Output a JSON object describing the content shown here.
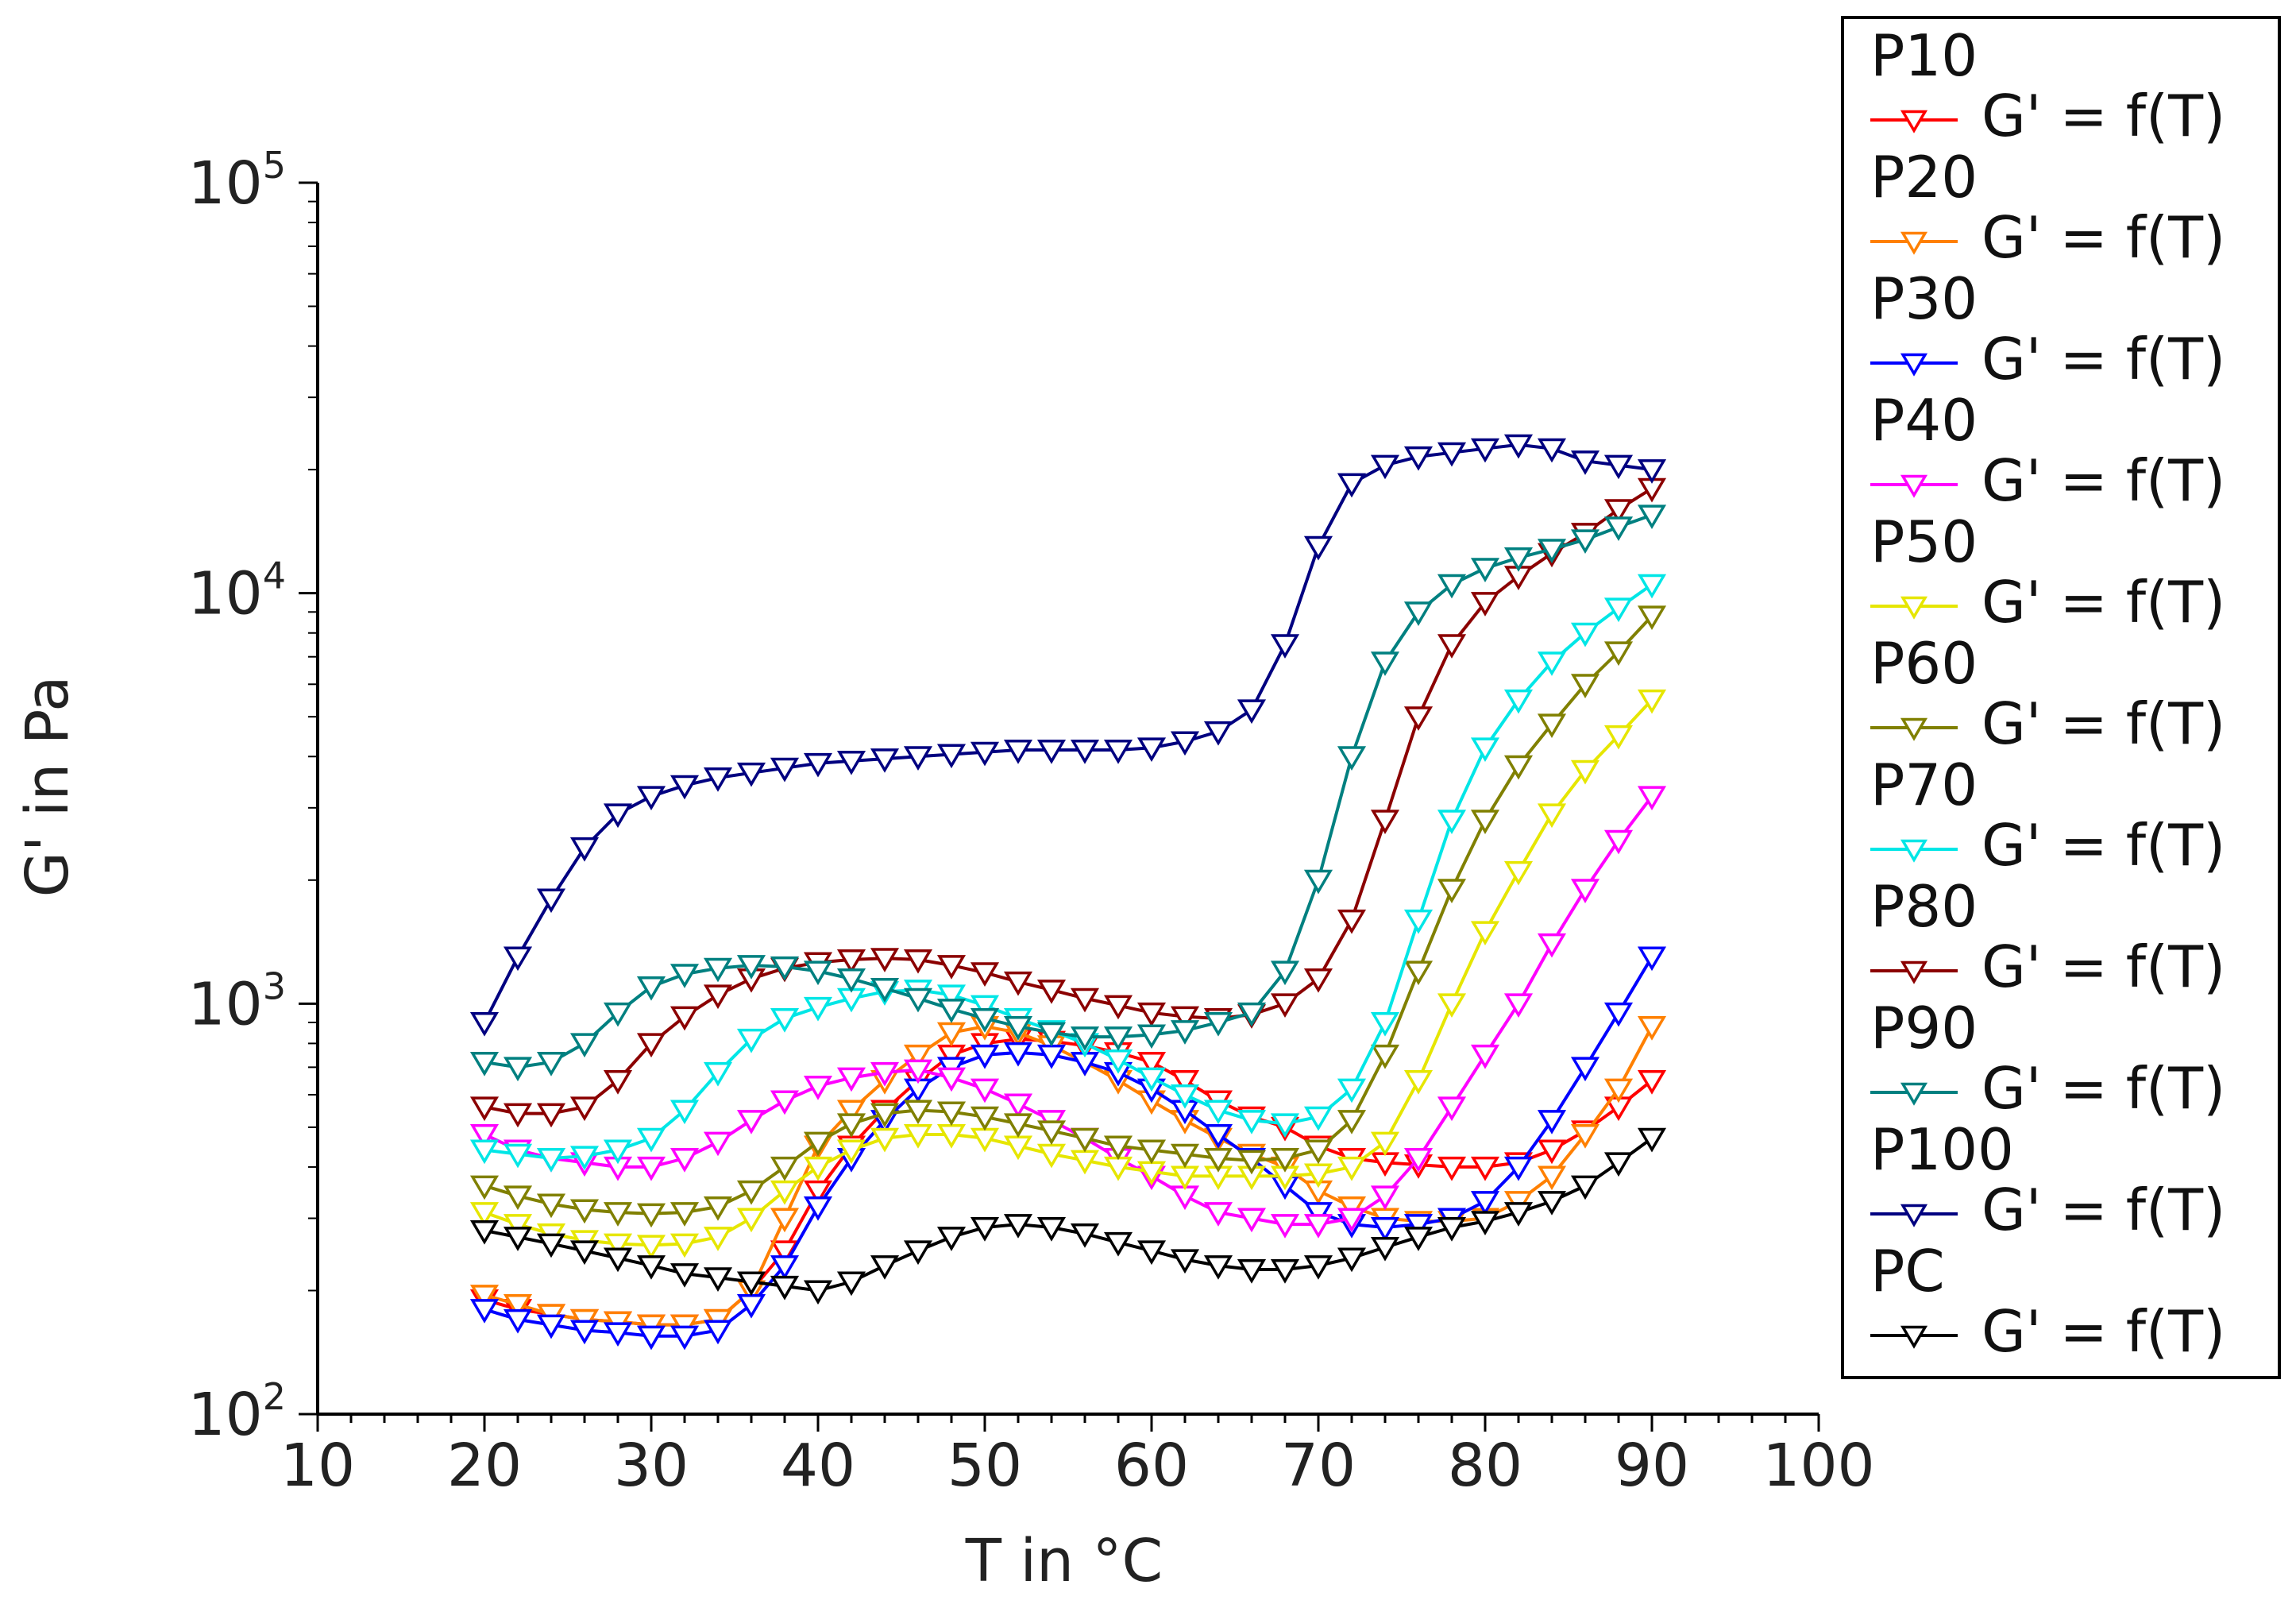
{
  "chart_data": {
    "type": "line",
    "title": "",
    "xlabel": "T in °C",
    "ylabel": "G' in Pa",
    "xlim": [
      10,
      100
    ],
    "ylim": [
      100,
      100000
    ],
    "yscale": "log",
    "x_ticks": [
      "10",
      "20",
      "30",
      "40",
      "50",
      "60",
      "70",
      "80",
      "90",
      "100"
    ],
    "y_ticks": [
      {
        "base": "10",
        "exp": "2"
      },
      {
        "base": "10",
        "exp": "3"
      },
      {
        "base": "10",
        "exp": "4"
      },
      {
        "base": "10",
        "exp": "5"
      }
    ],
    "marker": "down-triangle",
    "legend_position": "right",
    "x": [
      20,
      22,
      24,
      26,
      28,
      30,
      32,
      34,
      36,
      38,
      40,
      42,
      44,
      46,
      48,
      50,
      52,
      54,
      56,
      58,
      60,
      62,
      64,
      66,
      68,
      70,
      72,
      74,
      76,
      78,
      80,
      82,
      84,
      86,
      88,
      90
    ],
    "series": [
      {
        "name": "P10",
        "entry": "G' = f(T)",
        "color": "#ff0000",
        "values": [
          190,
          180,
          175,
          170,
          168,
          165,
          165,
          170,
          200,
          250,
          350,
          450,
          550,
          650,
          750,
          800,
          820,
          810,
          790,
          760,
          720,
          650,
          580,
          530,
          500,
          450,
          420,
          410,
          405,
          400,
          400,
          410,
          440,
          490,
          560,
          650
        ]
      },
      {
        "name": "P20",
        "entry": "G' = f(T)",
        "color": "#ff8000",
        "values": [
          195,
          185,
          175,
          170,
          168,
          165,
          165,
          170,
          200,
          300,
          450,
          550,
          650,
          750,
          850,
          880,
          850,
          790,
          720,
          650,
          580,
          520,
          470,
          430,
          400,
          350,
          320,
          300,
          295,
          295,
          300,
          330,
          380,
          480,
          620,
          880
        ]
      },
      {
        "name": "P30",
        "entry": "G' = f(T)",
        "color": "#0000ff",
        "values": [
          180,
          170,
          165,
          160,
          158,
          155,
          155,
          160,
          185,
          230,
          320,
          420,
          520,
          620,
          700,
          750,
          760,
          750,
          720,
          680,
          620,
          550,
          480,
          420,
          360,
          310,
          290,
          285,
          290,
          300,
          330,
          400,
          520,
          700,
          950,
          1300
        ]
      },
      {
        "name": "P40",
        "entry": "G' = f(T)",
        "color": "#ff00ff",
        "values": [
          480,
          440,
          420,
          410,
          400,
          400,
          420,
          460,
          520,
          580,
          630,
          660,
          680,
          690,
          660,
          620,
          570,
          520,
          470,
          420,
          380,
          340,
          310,
          300,
          290,
          290,
          300,
          340,
          420,
          560,
          750,
          1000,
          1400,
          1900,
          2500,
          3200
        ]
      },
      {
        "name": "P50",
        "entry": "G' = f(T)",
        "color": "#e6e600",
        "values": [
          310,
          290,
          275,
          265,
          260,
          258,
          260,
          270,
          300,
          350,
          400,
          440,
          470,
          480,
          480,
          470,
          450,
          430,
          415,
          400,
          390,
          380,
          380,
          380,
          380,
          385,
          400,
          460,
          650,
          1000,
          1500,
          2100,
          2900,
          3700,
          4500,
          5500
        ]
      },
      {
        "name": "P60",
        "entry": "G' = f(T)",
        "color": "#808000",
        "values": [
          360,
          340,
          325,
          315,
          310,
          308,
          310,
          320,
          350,
          400,
          460,
          510,
          540,
          550,
          545,
          530,
          510,
          490,
          470,
          450,
          440,
          430,
          420,
          415,
          420,
          440,
          520,
          750,
          1200,
          1900,
          2800,
          3800,
          4800,
          6000,
          7200,
          8800
        ]
      },
      {
        "name": "P70",
        "entry": "G' = f(T)",
        "color": "#00e6e6",
        "values": [
          440,
          430,
          420,
          425,
          440,
          470,
          550,
          680,
          820,
          920,
          980,
          1030,
          1070,
          1080,
          1050,
          990,
          920,
          860,
          800,
          730,
          660,
          600,
          550,
          520,
          510,
          530,
          620,
          900,
          1600,
          2800,
          4200,
          5500,
          6800,
          8000,
          9200,
          10500
        ]
      },
      {
        "name": "P80",
        "entry": "G' = f(T)",
        "color": "#8b0000",
        "values": [
          560,
          540,
          540,
          560,
          650,
          800,
          930,
          1050,
          1150,
          1220,
          1260,
          1280,
          1290,
          1280,
          1240,
          1190,
          1130,
          1080,
          1030,
          990,
          950,
          930,
          920,
          940,
          1000,
          1150,
          1600,
          2800,
          5000,
          7500,
          9500,
          11000,
          12500,
          14000,
          16000,
          18000
        ]
      },
      {
        "name": "P90",
        "entry": "G' = f(T)",
        "color": "#008080",
        "values": [
          720,
          700,
          720,
          800,
          950,
          1100,
          1180,
          1220,
          1240,
          1230,
          1200,
          1150,
          1090,
          1030,
          970,
          920,
          880,
          850,
          830,
          830,
          840,
          860,
          900,
          950,
          1200,
          2000,
          4000,
          6800,
          9000,
          10500,
          11500,
          12200,
          12800,
          13500,
          14500,
          15500
        ]
      },
      {
        "name": "P100",
        "entry": "G' = f(T)",
        "color": "#000080",
        "values": [
          900,
          1300,
          1800,
          2400,
          2900,
          3200,
          3400,
          3550,
          3650,
          3750,
          3850,
          3900,
          3950,
          4000,
          4050,
          4100,
          4150,
          4150,
          4150,
          4150,
          4200,
          4350,
          4600,
          5200,
          7500,
          13000,
          18500,
          20500,
          21500,
          22000,
          22500,
          23000,
          22500,
          21000,
          20500,
          20000
        ]
      },
      {
        "name": "PC",
        "entry": "G' = f(T)",
        "color": "#000000",
        "values": [
          280,
          270,
          260,
          250,
          240,
          230,
          220,
          215,
          210,
          205,
          200,
          210,
          230,
          250,
          270,
          285,
          290,
          285,
          275,
          262,
          250,
          238,
          230,
          225,
          225,
          230,
          240,
          255,
          270,
          285,
          295,
          310,
          330,
          360,
          410,
          470
        ]
      }
    ]
  }
}
